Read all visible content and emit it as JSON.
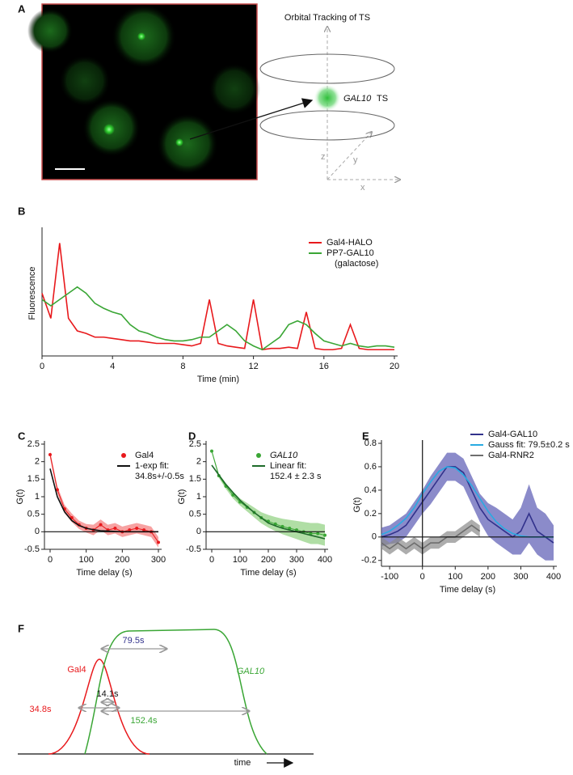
{
  "panel_labels": [
    "A",
    "B",
    "C",
    "D",
    "E",
    "F"
  ],
  "panel_a": {
    "title": "Orbital Tracking of TS",
    "ts_label": "GAL10",
    "ts_suffix": "TS",
    "axis_z": "z",
    "axis_y": "y",
    "axis_x": "x"
  },
  "chart_data": [
    {
      "type": "line",
      "xlabel": "Time (min)",
      "ylabel": "Fluorescence",
      "x": [
        0,
        0.5,
        1,
        1.5,
        2,
        2.5,
        3,
        3.5,
        4,
        4.5,
        5,
        5.5,
        6,
        6.5,
        7,
        7.5,
        8,
        8.5,
        9,
        9.5,
        10,
        10.5,
        11,
        11.5,
        12,
        12.5,
        13,
        13.5,
        14,
        14.5,
        15,
        15.5,
        16,
        16.5,
        17,
        17.5,
        18,
        18.5,
        19,
        19.5,
        20
      ],
      "xlim": [
        0,
        20
      ],
      "ylim": [
        0,
        1
      ],
      "xticks": [
        0,
        4,
        8,
        12,
        16,
        20
      ],
      "series": [
        {
          "name": "Gal4-HALO",
          "color": "#e8191c",
          "style": "line",
          "values": [
            0.5,
            0.3,
            0.9,
            0.3,
            0.2,
            0.18,
            0.15,
            0.15,
            0.14,
            0.13,
            0.12,
            0.12,
            0.11,
            0.1,
            0.1,
            0.1,
            0.09,
            0.08,
            0.1,
            0.45,
            0.1,
            0.08,
            0.07,
            0.06,
            0.45,
            0.05,
            0.06,
            0.06,
            0.07,
            0.06,
            0.35,
            0.06,
            0.05,
            0.05,
            0.06,
            0.25,
            0.06,
            0.05,
            0.05,
            0.05,
            0.05
          ]
        },
        {
          "name": "PP7-GAL10",
          "legend_note": "(galactose)",
          "color": "#3aa635",
          "style": "line",
          "values": [
            0.45,
            0.4,
            0.45,
            0.5,
            0.55,
            0.5,
            0.42,
            0.38,
            0.35,
            0.33,
            0.25,
            0.2,
            0.18,
            0.15,
            0.13,
            0.12,
            0.12,
            0.13,
            0.15,
            0.15,
            0.2,
            0.25,
            0.2,
            0.12,
            0.08,
            0.05,
            0.1,
            0.15,
            0.25,
            0.28,
            0.25,
            0.18,
            0.12,
            0.1,
            0.08,
            0.1,
            0.08,
            0.07,
            0.08,
            0.08,
            0.07
          ]
        }
      ]
    },
    {
      "type": "line",
      "xlabel": "Time delay (s)",
      "ylabel": "G(t)",
      "zero_line": true,
      "x": [
        0,
        20,
        40,
        60,
        80,
        100,
        120,
        140,
        160,
        180,
        200,
        220,
        240,
        260,
        280,
        300
      ],
      "xlim": [
        0,
        300
      ],
      "ylim": [
        -0.5,
        2.5
      ],
      "xticks": [
        0,
        100,
        200,
        300
      ],
      "yticks": [
        -0.5,
        0,
        0.5,
        1,
        1.5,
        2,
        2.5
      ],
      "series": [
        {
          "name": "Gal4",
          "color": "#e8191c",
          "band_color": "#f47a7a",
          "style": "points",
          "values": [
            2.2,
            1.2,
            0.65,
            0.4,
            0.2,
            0.1,
            0.05,
            0.2,
            0.05,
            0.1,
            0,
            0.05,
            0.1,
            0.05,
            0,
            -0.3
          ],
          "errors": [
            0.1,
            0.1,
            0.12,
            0.12,
            0.12,
            0.12,
            0.15,
            0.15,
            0.15,
            0.15,
            0.15,
            0.15,
            0.15,
            0.15,
            0.15,
            0.15
          ]
        },
        {
          "name": "1-exp fit:",
          "legend_note": "34.8s+/-0.5s",
          "color": "#111111",
          "style": "line",
          "values": [
            1.8,
            1.0,
            0.57,
            0.32,
            0.18,
            0.1,
            0.06,
            0.03,
            0.02,
            0.01,
            0,
            0,
            0,
            0,
            0,
            0
          ]
        }
      ]
    },
    {
      "type": "line",
      "xlabel": "Time delay (s)",
      "ylabel": "G(t)",
      "zero_line": true,
      "x": [
        0,
        25,
        50,
        75,
        100,
        125,
        150,
        175,
        200,
        225,
        250,
        275,
        300,
        325,
        350,
        375,
        400
      ],
      "xlim": [
        0,
        400
      ],
      "ylim": [
        -0.5,
        2.5
      ],
      "xticks": [
        0,
        100,
        200,
        300,
        400
      ],
      "yticks": [
        -0.5,
        0,
        0.5,
        1,
        1.5,
        2,
        2.5
      ],
      "series": [
        {
          "name": "GAL10",
          "color": "#3aa635",
          "band_color": "#8fd07f",
          "style": "points",
          "italic": true,
          "values": [
            2.3,
            1.6,
            1.3,
            1.05,
            0.85,
            0.7,
            0.55,
            0.4,
            0.3,
            0.22,
            0.15,
            0.1,
            0.05,
            0,
            -0.05,
            -0.05,
            -0.1
          ],
          "errors": [
            0.05,
            0.06,
            0.08,
            0.1,
            0.1,
            0.12,
            0.14,
            0.16,
            0.18,
            0.2,
            0.22,
            0.24,
            0.26,
            0.28,
            0.3,
            0.3,
            0.3
          ]
        },
        {
          "name": "Linear fit:",
          "legend_note": "152.4 ± 2.3 s",
          "color": "#1e6b2a",
          "style": "line",
          "values": [
            1.9,
            1.62,
            1.35,
            1.12,
            0.9,
            0.72,
            0.55,
            0.4,
            0.25,
            0.17,
            0.1,
            0.05,
            0,
            -0.05,
            -0.1,
            -0.15,
            -0.2
          ]
        }
      ]
    },
    {
      "type": "line",
      "xlabel": "Time delay (s)",
      "ylabel": "G(t)",
      "zero_line": true,
      "zero_vline": true,
      "x": [
        -125,
        -100,
        -75,
        -50,
        -25,
        0,
        25,
        50,
        75,
        100,
        125,
        150,
        175,
        200,
        225,
        250,
        275,
        300,
        325,
        350,
        375,
        400
      ],
      "xlim": [
        -125,
        400
      ],
      "ylim": [
        -0.25,
        0.8
      ],
      "xticks": [
        -100,
        0,
        100,
        200,
        300,
        400
      ],
      "yticks": [
        -0.2,
        0,
        0.2,
        0.4,
        0.6,
        0.8
      ],
      "series": [
        {
          "name": "Gal4-GAL10",
          "color": "#32328c",
          "band_color": "#5a5ab4",
          "style": "line",
          "values": [
            0,
            0.02,
            0.05,
            0.1,
            0.2,
            0.3,
            0.4,
            0.5,
            0.6,
            0.6,
            0.55,
            0.4,
            0.25,
            0.15,
            0.1,
            0.05,
            0,
            0.05,
            0.2,
            0.05,
            0,
            -0.05
          ],
          "errors": [
            0.08,
            0.08,
            0.1,
            0.1,
            0.1,
            0.1,
            0.12,
            0.12,
            0.12,
            0.12,
            0.12,
            0.12,
            0.12,
            0.14,
            0.15,
            0.15,
            0.15,
            0.2,
            0.25,
            0.2,
            0.2,
            0.15
          ]
        },
        {
          "name": "Gauss fit: 79.5±0.2 s",
          "color": "#29abe2",
          "style": "line",
          "values": [
            0.02,
            0.05,
            0.1,
            0.16,
            0.25,
            0.37,
            0.47,
            0.56,
            0.6,
            0.59,
            0.53,
            0.44,
            0.33,
            0.22,
            0.13,
            0.07,
            0.03,
            0.01,
            0,
            0,
            0,
            0
          ]
        },
        {
          "name": "Gal4-RNR2",
          "color": "#6e6e6e",
          "band_color": "#8a8a8a",
          "style": "line",
          "values": [
            -0.05,
            -0.1,
            -0.05,
            -0.1,
            -0.05,
            -0.1,
            -0.05,
            -0.05,
            0,
            0,
            0.05,
            0.1,
            0.05,
            null,
            null,
            null,
            null,
            null,
            null,
            null,
            null,
            null
          ],
          "errors": [
            0.05,
            0.05,
            0.05,
            0.05,
            0.05,
            0.05,
            0.05,
            0.05,
            0.05,
            0.05,
            0.05,
            0.05,
            0.05,
            null,
            null,
            null,
            null,
            null,
            null,
            null,
            null,
            null
          ]
        }
      ]
    }
  ],
  "panel_f": {
    "gap_label": "79.5s",
    "gal4_label": "Gal4",
    "gal10_label": "GAL10",
    "overlap_label": "14.1s",
    "gal4_width": "34.8s",
    "gal10_width": "152.4s",
    "time_label": "time"
  }
}
